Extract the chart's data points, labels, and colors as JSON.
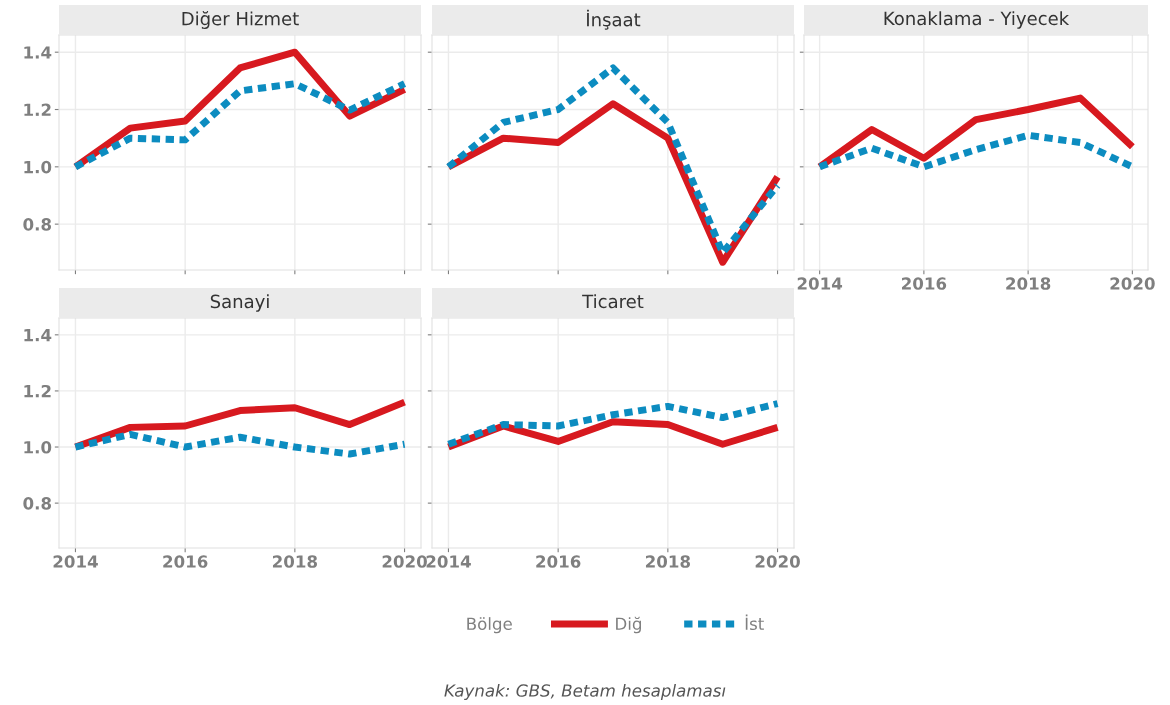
{
  "chart_data": [
    {
      "type": "line",
      "title": "Diğer Hizmet",
      "x": [
        2014,
        2015,
        2016,
        2017,
        2018,
        2019,
        2020
      ],
      "xlim": [
        2013.7,
        2020.3
      ],
      "xticks": [
        2014,
        2016,
        2018,
        2020
      ],
      "ylim": [
        0.64,
        1.46
      ],
      "yticks": [
        0.8,
        {
          "value": 1.0,
          "label": "1.0"
        },
        1.2,
        1.4
      ],
      "tick_labels": "y",
      "grid": true,
      "legend": "bottom",
      "legend_title": "Bölge",
      "series": [
        {
          "name": "Diğ",
          "color": "#d7191f",
          "line_style": "solid",
          "values": [
            1.0,
            1.135,
            1.16,
            1.345,
            1.4,
            1.177,
            1.27
          ]
        },
        {
          "name": "İst",
          "color": "#0c8cc0",
          "line_style": "dotted",
          "values": [
            1.0,
            1.1,
            1.094,
            1.265,
            1.29,
            1.198,
            1.29
          ]
        }
      ]
    },
    {
      "type": "line",
      "title": "İnşaat",
      "x": [
        2014,
        2015,
        2016,
        2017,
        2018,
        2019,
        2020
      ],
      "xlim": [
        2013.7,
        2020.3
      ],
      "xticks": [
        2014,
        2016,
        2018,
        2020
      ],
      "ylim": [
        0.64,
        1.46
      ],
      "yticks": [
        0.8,
        1.0,
        1.2,
        1.4
      ],
      "tick_labels": false,
      "grid": true,
      "series": [
        {
          "color": "#d7191f",
          "line_style": "solid",
          "values": [
            1.0,
            1.1,
            1.085,
            1.22,
            1.1,
            0.667,
            0.965
          ]
        },
        {
          "color": "#0c8cc0",
          "line_style": "dotted",
          "values": [
            1.0,
            1.155,
            1.2,
            1.345,
            1.155,
            0.7,
            0.935
          ]
        }
      ]
    },
    {
      "type": "line",
      "title": "Konaklama - Yiyecek",
      "x": [
        2014,
        2015,
        2016,
        2017,
        2018,
        2019,
        2020
      ],
      "xlim": [
        2013.7,
        2020.3
      ],
      "xticks": [
        2014,
        2016,
        2018,
        2020
      ],
      "ylim": [
        0.64,
        1.46
      ],
      "yticks": [
        0.8,
        1.0,
        1.2,
        1.4
      ],
      "tick_labels": "x",
      "grid": true,
      "series": [
        {
          "color": "#d7191f",
          "line_style": "solid",
          "values": [
            1.0,
            1.13,
            1.03,
            1.165,
            1.2,
            1.24,
            1.07
          ]
        },
        {
          "color": "#0c8cc0",
          "line_style": "dotted",
          "values": [
            1.0,
            1.065,
            1.0,
            1.06,
            1.11,
            1.085,
            1.0
          ]
        }
      ]
    },
    {
      "type": "line",
      "title": "Sanayi",
      "x": [
        2014,
        2015,
        2016,
        2017,
        2018,
        2019,
        2020
      ],
      "xlim": [
        2013.7,
        2020.3
      ],
      "xticks": [
        2014,
        2016,
        2018,
        2020
      ],
      "ylim": [
        0.64,
        1.46
      ],
      "yticks": [
        0.8,
        {
          "value": 1.0,
          "label": "1.0"
        },
        1.2,
        1.4
      ],
      "grid": true,
      "series": [
        {
          "color": "#d7191f",
          "line_style": "solid",
          "values": [
            1.0,
            1.07,
            1.075,
            1.13,
            1.14,
            1.08,
            1.16
          ]
        },
        {
          "color": "#0c8cc0",
          "line_style": "dotted",
          "values": [
            1.0,
            1.045,
            1.0,
            1.035,
            1.0,
            0.975,
            1.01
          ]
        }
      ]
    },
    {
      "type": "line",
      "title": "Ticaret",
      "x": [
        2014,
        2015,
        2016,
        2017,
        2018,
        2019,
        2020
      ],
      "xlim": [
        2013.7,
        2020.3
      ],
      "xticks": [
        2014,
        2016,
        2018,
        2020
      ],
      "ylim": [
        0.64,
        1.46
      ],
      "yticks": [
        0.8,
        1.0,
        1.2,
        1.4
      ],
      "tick_labels": "x",
      "grid": true,
      "annotations": [
        "Kaynak: GBS, Betam hesaplaması"
      ],
      "series": [
        {
          "color": "#d7191f",
          "line_style": "solid",
          "values": [
            1.0,
            1.075,
            1.02,
            1.09,
            1.08,
            1.01,
            1.07
          ]
        },
        {
          "color": "#0c8cc0",
          "line_style": "dotted",
          "values": [
            1.01,
            1.08,
            1.075,
            1.115,
            1.145,
            1.105,
            1.155
          ]
        }
      ]
    }
  ]
}
